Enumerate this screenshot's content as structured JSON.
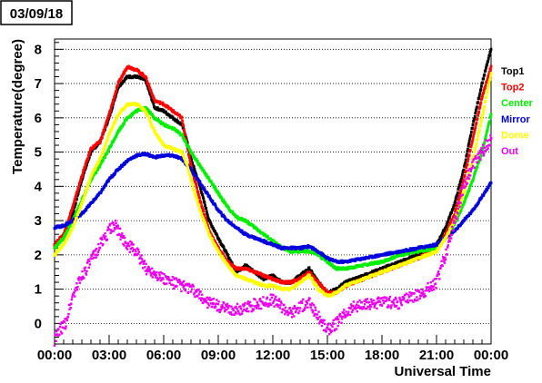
{
  "chart_data": {
    "type": "scatter",
    "title": "03/09/18",
    "xlabel": "Universal Time",
    "ylabel": "Temperature(degree)",
    "xlim": [
      0,
      24
    ],
    "ylim": [
      -0.6,
      8.3
    ],
    "grid": "horizontal dotted",
    "legend_position": "right",
    "x_ticks": [
      0,
      3,
      6,
      9,
      12,
      15,
      18,
      21,
      24
    ],
    "x_tick_labels": [
      "00:00",
      "03:00",
      "06:00",
      "09:00",
      "12:00",
      "15:00",
      "18:00",
      "21:00",
      "00:00"
    ],
    "y_ticks": [
      0,
      1,
      2,
      3,
      4,
      5,
      6,
      7,
      8
    ],
    "y_tick_labels": [
      "0",
      "1",
      "2",
      "3",
      "4",
      "5",
      "6",
      "7",
      "8"
    ],
    "series": [
      {
        "name": "Top1",
        "color": "#000000",
        "x": [
          0,
          0.5,
          1,
          1.5,
          2,
          2.5,
          3,
          3.5,
          4,
          4.5,
          5,
          5.5,
          6,
          6.5,
          7,
          7.2,
          7.5,
          8,
          8.5,
          9,
          9.5,
          10,
          10.5,
          11,
          11.5,
          12,
          12.5,
          13,
          13.5,
          14,
          14.5,
          15,
          15.5,
          16,
          17,
          18,
          19,
          20,
          21,
          21.5,
          22,
          22.5,
          23,
          23.5,
          24
        ],
        "y": [
          2.3,
          2.5,
          3.2,
          4.2,
          5.0,
          5.3,
          6.0,
          6.9,
          7.2,
          7.2,
          7.1,
          6.3,
          6.2,
          6.0,
          5.8,
          5.5,
          4.8,
          4.0,
          3.0,
          2.5,
          2.0,
          1.5,
          1.7,
          1.5,
          1.3,
          1.4,
          1.2,
          1.2,
          1.4,
          1.6,
          1.2,
          0.9,
          1.0,
          1.2,
          1.4,
          1.6,
          1.8,
          2.0,
          2.3,
          2.8,
          3.5,
          4.5,
          5.8,
          7.0,
          8.0
        ]
      },
      {
        "name": "Top2",
        "color": "#ff0000",
        "x": [
          0,
          0.5,
          1,
          1.5,
          2,
          2.5,
          3,
          3.5,
          4,
          4.5,
          5,
          5.5,
          6,
          6.5,
          7,
          7.2,
          7.5,
          8,
          8.5,
          9,
          9.5,
          10,
          10.5,
          11,
          11.5,
          12,
          12.5,
          13,
          13.5,
          14,
          14.5,
          15,
          15.5,
          16,
          17,
          18,
          19,
          20,
          21,
          21.5,
          22,
          22.5,
          23,
          23.5,
          24
        ],
        "y": [
          2.3,
          2.6,
          3.4,
          4.3,
          5.1,
          5.3,
          6.1,
          7.0,
          7.5,
          7.4,
          7.2,
          6.5,
          6.4,
          6.2,
          6.0,
          5.4,
          4.6,
          3.6,
          2.7,
          2.2,
          1.8,
          1.6,
          1.6,
          1.5,
          1.4,
          1.3,
          1.2,
          1.2,
          1.3,
          1.5,
          1.2,
          0.9,
          0.9,
          1.1,
          1.3,
          1.5,
          1.7,
          1.9,
          2.2,
          2.6,
          3.2,
          4.2,
          5.4,
          6.6,
          7.5
        ]
      },
      {
        "name": "Center",
        "color": "#00ee00",
        "x": [
          0,
          0.5,
          1,
          1.5,
          2,
          2.5,
          3,
          3.5,
          4,
          4.5,
          5,
          5.5,
          6,
          6.5,
          7,
          7.5,
          8,
          8.5,
          9,
          9.5,
          10,
          10.5,
          11,
          11.5,
          12,
          12.5,
          13,
          13.5,
          14,
          14.5,
          15,
          15.5,
          16,
          17,
          18,
          19,
          20,
          21,
          21.5,
          22,
          22.5,
          23,
          23.5,
          24
        ],
        "y": [
          2.2,
          2.5,
          3.0,
          3.6,
          4.2,
          4.6,
          5.1,
          5.6,
          6.0,
          6.2,
          6.3,
          6.0,
          5.8,
          5.7,
          5.5,
          5.0,
          4.6,
          4.2,
          3.8,
          3.4,
          3.1,
          3.0,
          2.8,
          2.6,
          2.4,
          2.2,
          2.1,
          2.1,
          2.1,
          2.0,
          1.8,
          1.6,
          1.6,
          1.7,
          1.8,
          2.0,
          2.1,
          2.2,
          2.5,
          2.9,
          3.5,
          4.2,
          5.0,
          6.1
        ]
      },
      {
        "name": "Mirror",
        "color": "#0000dd",
        "x": [
          0,
          0.5,
          1,
          1.5,
          2,
          2.5,
          3,
          3.5,
          4,
          4.5,
          5,
          5.5,
          6,
          6.5,
          7,
          7.5,
          8,
          8.5,
          9,
          9.5,
          10,
          10.5,
          11,
          11.5,
          12,
          12.5,
          13,
          13.5,
          14,
          14.5,
          15,
          15.5,
          16,
          17,
          18,
          19,
          20,
          21,
          21.5,
          22,
          22.5,
          23,
          23.5,
          24
        ],
        "y": [
          2.8,
          2.85,
          3.0,
          3.2,
          3.5,
          3.8,
          4.2,
          4.5,
          4.75,
          4.9,
          4.95,
          4.85,
          4.9,
          4.9,
          4.8,
          4.5,
          4.1,
          3.7,
          3.3,
          3.0,
          2.8,
          2.6,
          2.5,
          2.4,
          2.3,
          2.2,
          2.2,
          2.2,
          2.25,
          2.1,
          1.9,
          1.8,
          1.8,
          1.9,
          2.0,
          2.1,
          2.2,
          2.3,
          2.5,
          2.7,
          3.0,
          3.3,
          3.7,
          4.1
        ]
      },
      {
        "name": "Dome",
        "color": "#ffff00",
        "x": [
          0,
          0.5,
          1,
          1.5,
          2,
          2.5,
          3,
          3.5,
          4,
          4.5,
          5,
          5.5,
          6,
          6.5,
          7,
          7.3,
          7.6,
          8,
          8.5,
          9,
          9.5,
          10,
          10.5,
          11,
          11.5,
          12,
          12.5,
          13,
          13.5,
          14,
          14.5,
          15,
          15.5,
          16,
          17,
          18,
          19,
          20,
          21,
          21.5,
          22,
          22.5,
          23,
          23.5,
          24
        ],
        "y": [
          2.0,
          2.3,
          2.8,
          3.5,
          4.3,
          4.8,
          5.5,
          6.1,
          6.4,
          6.4,
          6.2,
          5.6,
          5.2,
          5.1,
          5.0,
          4.6,
          4.0,
          3.3,
          2.6,
          2.1,
          1.7,
          1.4,
          1.3,
          1.2,
          1.1,
          1.1,
          1.0,
          1.0,
          1.2,
          1.4,
          1.0,
          0.8,
          0.9,
          1.1,
          1.3,
          1.5,
          1.7,
          1.9,
          2.1,
          2.5,
          3.0,
          3.8,
          4.8,
          6.0,
          7.3
        ]
      },
      {
        "name": "Out",
        "color": "#ee00ee",
        "x": [
          0,
          0.3,
          0.6,
          1,
          1.5,
          2,
          2.5,
          3,
          3.3,
          3.6,
          4,
          4.5,
          5,
          5.5,
          6,
          6.5,
          7,
          7.5,
          8,
          8.5,
          9,
          9.5,
          10,
          10.5,
          11,
          11.5,
          12,
          12.5,
          13,
          13.5,
          14,
          14.5,
          15,
          15.5,
          16,
          16.5,
          17,
          17.5,
          18,
          18.5,
          19,
          19.5,
          20,
          20.5,
          21,
          21.5,
          22,
          22.5,
          23,
          23.5,
          24
        ],
        "y": [
          -0.5,
          -0.2,
          0.0,
          0.8,
          1.4,
          1.8,
          2.3,
          2.7,
          2.9,
          2.6,
          2.3,
          2.1,
          1.6,
          1.5,
          1.3,
          1.2,
          1.1,
          1.0,
          0.8,
          0.6,
          0.5,
          0.4,
          0.4,
          0.45,
          0.55,
          0.6,
          0.7,
          0.5,
          0.3,
          0.5,
          0.6,
          0.2,
          -0.2,
          0.0,
          0.3,
          0.5,
          0.5,
          0.6,
          0.6,
          0.6,
          0.6,
          0.8,
          0.8,
          1.0,
          1.2,
          2.0,
          3.0,
          4.0,
          4.6,
          5.0,
          5.4
        ]
      }
    ]
  }
}
